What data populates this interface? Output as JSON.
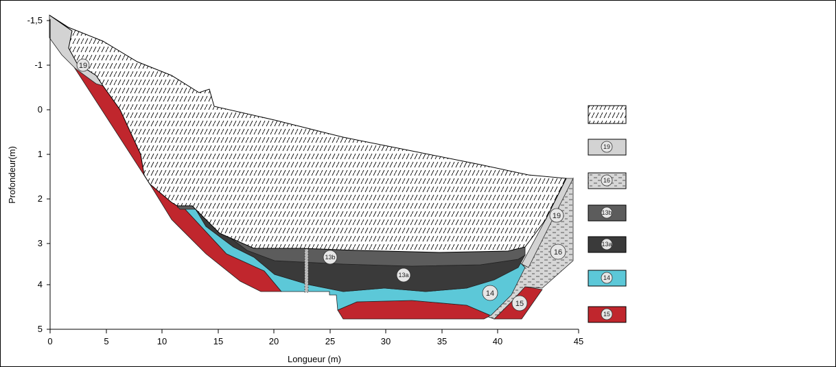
{
  "axes": {
    "x_title": "Longueur (m)",
    "y_title": "Profondeur(m)",
    "x_ticks": [
      "0",
      "5",
      "10",
      "15",
      "20",
      "25",
      "30",
      "35",
      "40",
      "45"
    ],
    "y_ticks": [
      "-1,5",
      "-1",
      "0",
      "1",
      "2",
      "3",
      "4",
      "5"
    ]
  },
  "section_labels": {
    "l19a": "19",
    "l19b": "19",
    "l16": "16",
    "l13b": "13b",
    "l13a": "13a",
    "l14": "14",
    "l15": "15"
  },
  "legend": [
    {
      "label": "",
      "pattern": "hatch"
    },
    {
      "label": "19",
      "color": "#d3d3d3"
    },
    {
      "label": "16",
      "pattern": "dash"
    },
    {
      "label": "13b",
      "color": "#5c5c5c"
    },
    {
      "label": "13a",
      "color": "#3a3a3a"
    },
    {
      "label": "14",
      "color": "#5cc8d8"
    },
    {
      "label": "15",
      "color": "#c0262d"
    }
  ],
  "colors": {
    "layer19": "#d3d3d3",
    "layer16": "#d6d6d6",
    "layer13b": "#5c5c5c",
    "layer13a": "#3a3a3a",
    "layer14": "#5cc8d8",
    "layer15": "#c0262d"
  }
}
